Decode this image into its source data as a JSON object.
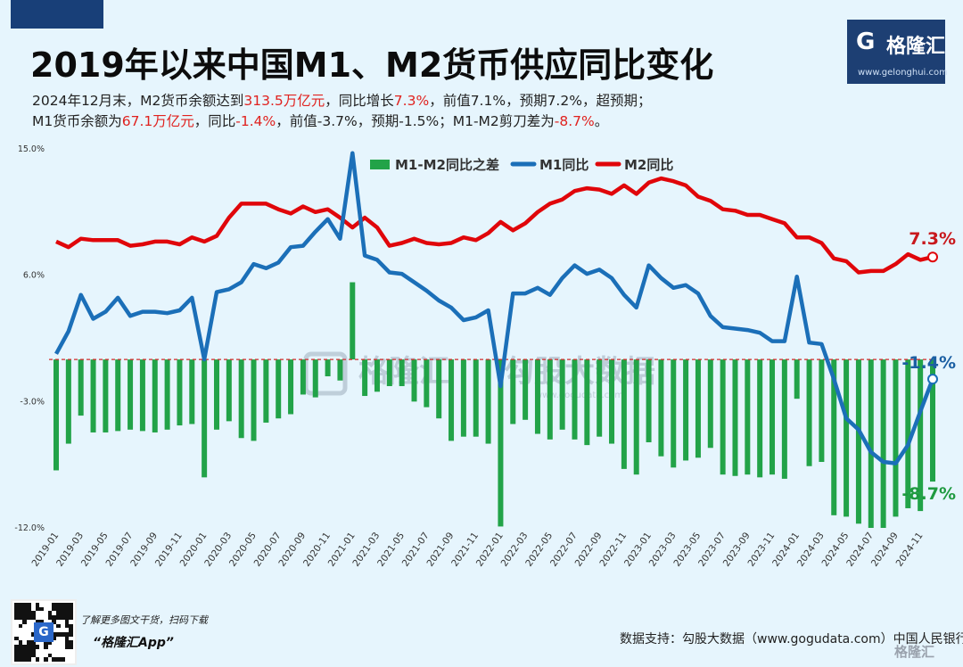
{
  "title": "2019年以来中国M1、M2货币供应同比变化",
  "subtitle": {
    "line1": [
      {
        "t": "2024年12月末，M2货币余额达到",
        "hl": false
      },
      {
        "t": "313.5万亿元",
        "hl": true
      },
      {
        "t": "，同比增长",
        "hl": false
      },
      {
        "t": "7.3%",
        "hl": true
      },
      {
        "t": "，前值7.1%，预期7.2%，超预期；",
        "hl": false
      }
    ],
    "line2": [
      {
        "t": "M1货币余额为",
        "hl": false
      },
      {
        "t": "67.1万亿元",
        "hl": true
      },
      {
        "t": "，同比",
        "hl": false
      },
      {
        "t": "-1.4%",
        "hl": true
      },
      {
        "t": "，前值-3.7%，预期-1.5%；M1-M2剪刀差为",
        "hl": false
      },
      {
        "t": "-8.7%",
        "hl": true
      },
      {
        "t": "。",
        "hl": false
      }
    ]
  },
  "logo": {
    "mark": "G",
    "text": "格隆汇",
    "url": "www.gelonghui.com"
  },
  "watermark": {
    "left": "格隆汇",
    "right": "勾股大数据",
    "url": "www.gogudata.com"
  },
  "footer": {
    "promo_line1": "了解更多图文干货，扫码下载",
    "promo_line2": "“格隆汇App”",
    "qr_center": "G",
    "source": "数据支持：勾股大数据（www.gogudata.com）中国人民银行",
    "corner_logo": "格隆汇"
  },
  "colors": {
    "m2": "#e0060a",
    "m1": "#1b6fb8",
    "diff": "#22a348",
    "zero_line": "#d42a2a",
    "end_m2_label": "#c8181c",
    "end_m1_label": "#1b5fa3",
    "end_diff_label": "#1f9a40"
  },
  "chart_data": {
    "type": "bar+line",
    "ylim": [
      -12,
      15
    ],
    "yticks": [
      15,
      6,
      -3,
      -12
    ],
    "ytick_labels": [
      "15.0%",
      "6.0%",
      "-3.0%",
      "-12.0%"
    ],
    "x": [
      "2019-01",
      "2019-02",
      "2019-03",
      "2019-04",
      "2019-05",
      "2019-06",
      "2019-07",
      "2019-08",
      "2019-09",
      "2019-10",
      "2019-11",
      "2019-12",
      "2020-01",
      "2020-02",
      "2020-03",
      "2020-04",
      "2020-05",
      "2020-06",
      "2020-07",
      "2020-08",
      "2020-09",
      "2020-10",
      "2020-11",
      "2020-12",
      "2021-01",
      "2021-02",
      "2021-03",
      "2021-04",
      "2021-05",
      "2021-06",
      "2021-07",
      "2021-08",
      "2021-09",
      "2021-10",
      "2021-11",
      "2021-12",
      "2022-01",
      "2022-02",
      "2022-03",
      "2022-04",
      "2022-05",
      "2022-06",
      "2022-07",
      "2022-08",
      "2022-09",
      "2022-10",
      "2022-11",
      "2022-12",
      "2023-01",
      "2023-02",
      "2023-03",
      "2023-04",
      "2023-05",
      "2023-06",
      "2023-07",
      "2023-08",
      "2023-09",
      "2023-10",
      "2023-11",
      "2023-12",
      "2024-01",
      "2024-02",
      "2024-03",
      "2024-04",
      "2024-05",
      "2024-06",
      "2024-07",
      "2024-08",
      "2024-09",
      "2024-10",
      "2024-11",
      "2024-12"
    ],
    "xtick_labels": [
      "2019-01",
      "2019-03",
      "2019-05",
      "2019-07",
      "2019-09",
      "2019-11",
      "2020-01",
      "2020-03",
      "2020-05",
      "2020-07",
      "2020-09",
      "2020-11",
      "2021-01",
      "2021-03",
      "2021-05",
      "2021-07",
      "2021-09",
      "2021-11",
      "2022-01",
      "2022-03",
      "2022-05",
      "2022-07",
      "2022-09",
      "2022-11",
      "2023-01",
      "2023-03",
      "2023-05",
      "2023-07",
      "2023-09",
      "2023-11",
      "2024-01",
      "2024-03",
      "2024-05",
      "2024-07",
      "2024-09",
      "2024-11"
    ],
    "series": [
      {
        "name": "M1-M2同比之差",
        "kind": "bar",
        "values": [
          -7.9,
          -6.0,
          -4.0,
          -5.2,
          -5.2,
          -5.1,
          -5.0,
          -5.1,
          -5.2,
          -5.0,
          -4.7,
          -4.6,
          -8.4,
          -5.0,
          -4.4,
          -5.6,
          -5.8,
          -4.5,
          -4.2,
          -3.9,
          -2.5,
          -2.7,
          -1.2,
          -1.5,
          5.5,
          -2.6,
          -2.3,
          -1.9,
          -1.9,
          -3.0,
          -3.4,
          -4.2,
          -5.8,
          -5.5,
          -5.5,
          -6.0,
          -11.9,
          -4.6,
          -4.3,
          -5.3,
          -5.7,
          -5.0,
          -5.7,
          -6.1,
          -5.5,
          -6.0,
          -7.8,
          -8.2,
          -5.9,
          -6.9,
          -7.7,
          -7.2,
          -7.0,
          -6.3,
          -8.2,
          -8.3,
          -8.2,
          -8.4,
          -8.2,
          -8.5,
          -2.8,
          -7.6,
          -7.3,
          -11.1,
          -11.2,
          -11.7,
          -12.0,
          -12.0,
          -11.2,
          -10.6,
          -10.8,
          -8.7
        ]
      },
      {
        "name": "M1同比",
        "kind": "line",
        "values": [
          0.4,
          2.0,
          4.6,
          2.9,
          3.4,
          4.4,
          3.1,
          3.4,
          3.4,
          3.3,
          3.5,
          4.4,
          0.0,
          4.8,
          5.0,
          5.5,
          6.8,
          6.5,
          6.9,
          8.0,
          8.1,
          9.1,
          10.0,
          8.6,
          14.7,
          7.4,
          7.1,
          6.2,
          6.1,
          5.5,
          4.9,
          4.2,
          3.7,
          2.8,
          3.0,
          3.5,
          -1.9,
          4.7,
          4.7,
          5.1,
          4.6,
          5.8,
          6.7,
          6.1,
          6.4,
          5.8,
          4.6,
          3.7,
          6.7,
          5.8,
          5.1,
          5.3,
          4.7,
          3.1,
          2.3,
          2.2,
          2.1,
          1.9,
          1.3,
          1.3,
          5.9,
          1.2,
          1.1,
          -1.4,
          -4.2,
          -5.0,
          -6.6,
          -7.3,
          -7.4,
          -6.1,
          -3.7,
          -1.4
        ]
      },
      {
        "name": "M2同比",
        "kind": "line",
        "values": [
          8.4,
          8.0,
          8.6,
          8.5,
          8.5,
          8.5,
          8.1,
          8.2,
          8.4,
          8.4,
          8.2,
          8.7,
          8.4,
          8.8,
          10.1,
          11.1,
          11.1,
          11.1,
          10.7,
          10.4,
          10.9,
          10.5,
          10.7,
          10.1,
          9.4,
          10.1,
          9.4,
          8.1,
          8.3,
          8.6,
          8.3,
          8.2,
          8.3,
          8.7,
          8.5,
          9.0,
          9.8,
          9.2,
          9.7,
          10.5,
          11.1,
          11.4,
          12.0,
          12.2,
          12.1,
          11.8,
          12.4,
          11.8,
          12.6,
          12.9,
          12.7,
          12.4,
          11.6,
          11.3,
          10.7,
          10.6,
          10.3,
          10.3,
          10.0,
          9.7,
          8.7,
          8.7,
          8.3,
          7.2,
          7.0,
          6.2,
          6.3,
          6.3,
          6.8,
          7.5,
          7.1,
          7.3
        ]
      }
    ],
    "end_labels": {
      "m2": "7.3%",
      "m1": "-1.4%",
      "diff": "-8.7%"
    }
  }
}
